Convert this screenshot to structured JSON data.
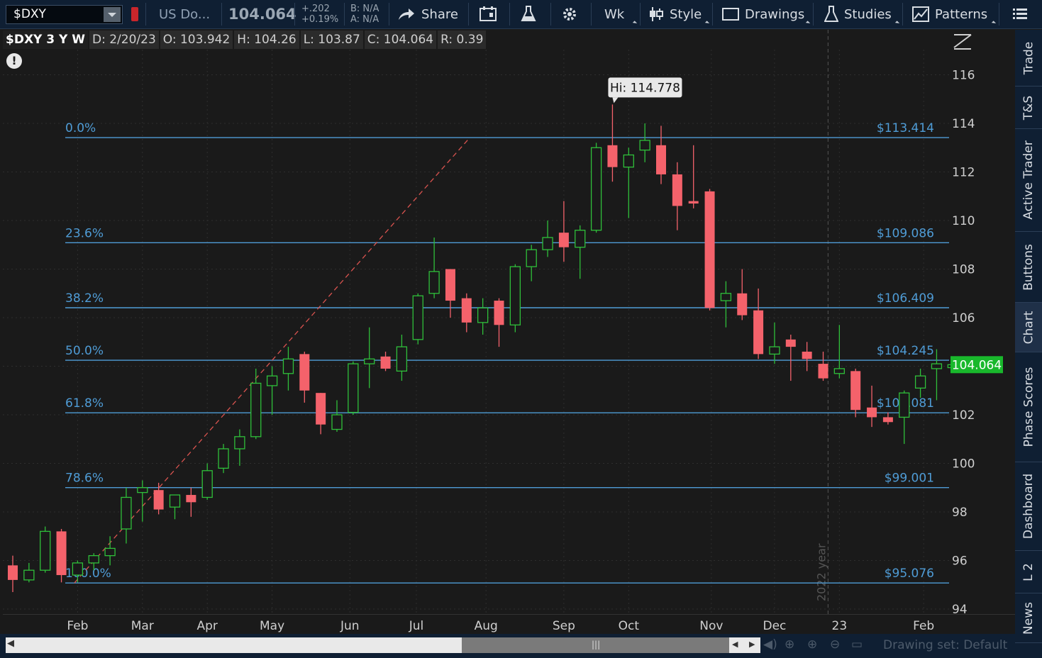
{
  "toolbar": {
    "symbol": "$DXY",
    "description": "US Do...",
    "last_price": "104.064",
    "net_change": "+.202",
    "pct_change": "+0.19%",
    "bid": "B: N/A",
    "ask": "A: N/A",
    "share_label": "Share",
    "timeframe_label": "Wk",
    "style_label": "Style",
    "drawings_label": "Drawings",
    "studies_label": "Studies",
    "patterns_label": "Patterns"
  },
  "infobar": {
    "symbol_period": "$DXY 3 Y W",
    "date": "D: 2/20/23",
    "open": "O: 103.942",
    "high": "H: 104.26",
    "low": "L: 103.87",
    "close": "C: 104.064",
    "range": "R: 0.39"
  },
  "hi_bubble": "Hi: 114.778",
  "current_price_tag": "104.064",
  "year_marker": "2022 year",
  "right_tabs": [
    "Trade",
    "T&S",
    "Active Trader",
    "Buttons",
    "Chart",
    "Phase Scores",
    "Dashboard",
    "L 2",
    "News"
  ],
  "active_tab": "Chart",
  "drawing_set": "Drawing set: Default",
  "colors": {
    "up": "#2fbf3a",
    "down": "#f4626b",
    "fib": "#4f9cd6",
    "price_tag": "#19b82c"
  },
  "chart_data": {
    "type": "candlestick",
    "period": "weekly",
    "y_ticks": [
      94,
      96,
      98,
      100,
      102,
      104,
      106,
      108,
      110,
      112,
      114,
      116
    ],
    "ylim": [
      93.6,
      117.2
    ],
    "x_tick_labels": [
      {
        "label": "Feb",
        "i": 4
      },
      {
        "label": "Mar",
        "i": 8
      },
      {
        "label": "Apr",
        "i": 12
      },
      {
        "label": "May",
        "i": 16
      },
      {
        "label": "Jun",
        "i": 20.8
      },
      {
        "label": "Jul",
        "i": 24.9
      },
      {
        "label": "Aug",
        "i": 29.2
      },
      {
        "label": "Sep",
        "i": 34
      },
      {
        "label": "Oct",
        "i": 38
      },
      {
        "label": "Nov",
        "i": 43.1
      },
      {
        "label": "Dec",
        "i": 47
      },
      {
        "label": "23",
        "i": 51
      },
      {
        "label": "Feb",
        "i": 56.2
      }
    ],
    "fib_levels": [
      {
        "pct": "0.0%",
        "price": "$113.414",
        "value": 113.414
      },
      {
        "pct": "23.6%",
        "price": "$109.086",
        "value": 109.086
      },
      {
        "pct": "38.2%",
        "price": "$106.409",
        "value": 106.409
      },
      {
        "pct": "50.0%",
        "price": "$104.245",
        "value": 104.245
      },
      {
        "pct": "61.8%",
        "price": "$102.081",
        "value": 102.081
      },
      {
        "pct": "78.6%",
        "price": "$99.001",
        "value": 99.001
      },
      {
        "pct": "100.0%",
        "price": "$95.076",
        "value": 95.076
      }
    ],
    "trendline": {
      "from_i": 3.8,
      "from_v": 95.076,
      "to_i": 28.2,
      "to_v": 113.414
    },
    "candles": [
      {
        "o": 95.8,
        "h": 96.2,
        "l": 94.7,
        "c": 95.2
      },
      {
        "o": 95.2,
        "h": 95.9,
        "l": 95.1,
        "c": 95.6
      },
      {
        "o": 95.6,
        "h": 97.4,
        "l": 95.5,
        "c": 97.2
      },
      {
        "o": 97.2,
        "h": 97.3,
        "l": 95.1,
        "c": 95.4
      },
      {
        "o": 95.4,
        "h": 96.0,
        "l": 95.1,
        "c": 95.9
      },
      {
        "o": 95.9,
        "h": 96.3,
        "l": 95.6,
        "c": 96.2
      },
      {
        "o": 96.2,
        "h": 97.0,
        "l": 95.8,
        "c": 96.5
      },
      {
        "o": 97.3,
        "h": 99.0,
        "l": 96.7,
        "c": 98.6
      },
      {
        "o": 98.8,
        "h": 99.3,
        "l": 97.6,
        "c": 99.0
      },
      {
        "o": 98.9,
        "h": 99.2,
        "l": 97.9,
        "c": 98.1
      },
      {
        "o": 98.2,
        "h": 98.6,
        "l": 97.7,
        "c": 98.7
      },
      {
        "o": 98.7,
        "h": 99.0,
        "l": 97.8,
        "c": 98.4
      },
      {
        "o": 98.6,
        "h": 100.0,
        "l": 98.5,
        "c": 99.7
      },
      {
        "o": 99.8,
        "h": 100.8,
        "l": 99.6,
        "c": 100.6
      },
      {
        "o": 100.6,
        "h": 101.4,
        "l": 99.9,
        "c": 101.1
      },
      {
        "o": 101.1,
        "h": 103.9,
        "l": 101.0,
        "c": 103.3
      },
      {
        "o": 103.2,
        "h": 104.0,
        "l": 102.0,
        "c": 103.6
      },
      {
        "o": 103.7,
        "h": 104.8,
        "l": 103.0,
        "c": 104.3
      },
      {
        "o": 104.5,
        "h": 104.6,
        "l": 102.5,
        "c": 103.0
      },
      {
        "o": 102.9,
        "h": 102.9,
        "l": 101.2,
        "c": 101.6
      },
      {
        "o": 101.4,
        "h": 102.6,
        "l": 101.3,
        "c": 102.0
      },
      {
        "o": 102.1,
        "h": 104.2,
        "l": 102.0,
        "c": 104.1
      },
      {
        "o": 104.1,
        "h": 105.6,
        "l": 103.1,
        "c": 104.3
      },
      {
        "o": 104.4,
        "h": 104.6,
        "l": 103.8,
        "c": 103.9
      },
      {
        "o": 103.8,
        "h": 105.3,
        "l": 103.4,
        "c": 104.8
      },
      {
        "o": 105.1,
        "h": 107.0,
        "l": 104.9,
        "c": 106.9
      },
      {
        "o": 107.0,
        "h": 109.3,
        "l": 106.8,
        "c": 107.9
      },
      {
        "o": 108.0,
        "h": 108.0,
        "l": 106.0,
        "c": 106.7
      },
      {
        "o": 106.8,
        "h": 107.0,
        "l": 105.4,
        "c": 105.8
      },
      {
        "o": 105.8,
        "h": 106.8,
        "l": 105.3,
        "c": 106.4
      },
      {
        "o": 106.7,
        "h": 106.8,
        "l": 104.8,
        "c": 105.7
      },
      {
        "o": 105.7,
        "h": 108.2,
        "l": 105.4,
        "c": 108.1
      },
      {
        "o": 108.1,
        "h": 109.0,
        "l": 107.5,
        "c": 108.8
      },
      {
        "o": 108.8,
        "h": 110.0,
        "l": 108.5,
        "c": 109.3
      },
      {
        "o": 109.5,
        "h": 110.8,
        "l": 108.3,
        "c": 108.9
      },
      {
        "o": 108.9,
        "h": 109.8,
        "l": 107.6,
        "c": 109.6
      },
      {
        "o": 109.6,
        "h": 113.2,
        "l": 109.5,
        "c": 113.0
      },
      {
        "o": 113.1,
        "h": 114.778,
        "l": 111.6,
        "c": 112.2
      },
      {
        "o": 112.2,
        "h": 113.0,
        "l": 110.1,
        "c": 112.7
      },
      {
        "o": 112.9,
        "h": 114.0,
        "l": 112.4,
        "c": 113.3
      },
      {
        "o": 113.1,
        "h": 113.9,
        "l": 111.5,
        "c": 111.9
      },
      {
        "o": 111.9,
        "h": 112.4,
        "l": 109.6,
        "c": 110.6
      },
      {
        "o": 110.8,
        "h": 113.1,
        "l": 110.5,
        "c": 110.7
      },
      {
        "o": 111.2,
        "h": 111.3,
        "l": 106.3,
        "c": 106.4
      },
      {
        "o": 106.7,
        "h": 107.5,
        "l": 105.6,
        "c": 107.0
      },
      {
        "o": 107.0,
        "h": 108.0,
        "l": 105.9,
        "c": 106.1
      },
      {
        "o": 106.3,
        "h": 107.2,
        "l": 104.3,
        "c": 104.5
      },
      {
        "o": 104.5,
        "h": 105.8,
        "l": 104.1,
        "c": 104.8
      },
      {
        "o": 105.1,
        "h": 105.3,
        "l": 103.4,
        "c": 104.8
      },
      {
        "o": 104.6,
        "h": 105.0,
        "l": 103.8,
        "c": 104.3
      },
      {
        "o": 104.1,
        "h": 104.6,
        "l": 103.4,
        "c": 103.5
      },
      {
        "o": 103.7,
        "h": 105.7,
        "l": 103.5,
        "c": 103.9
      },
      {
        "o": 103.8,
        "h": 103.9,
        "l": 101.9,
        "c": 102.2
      },
      {
        "o": 102.3,
        "h": 103.2,
        "l": 101.5,
        "c": 101.9
      },
      {
        "o": 101.9,
        "h": 102.1,
        "l": 101.6,
        "c": 101.7
      },
      {
        "o": 101.9,
        "h": 103.0,
        "l": 100.8,
        "c": 102.9
      },
      {
        "o": 103.1,
        "h": 103.9,
        "l": 102.7,
        "c": 103.6
      },
      {
        "o": 103.9,
        "h": 104.7,
        "l": 102.6,
        "c": 104.1
      },
      {
        "o": 103.942,
        "h": 104.26,
        "l": 103.87,
        "c": 104.064
      }
    ]
  }
}
